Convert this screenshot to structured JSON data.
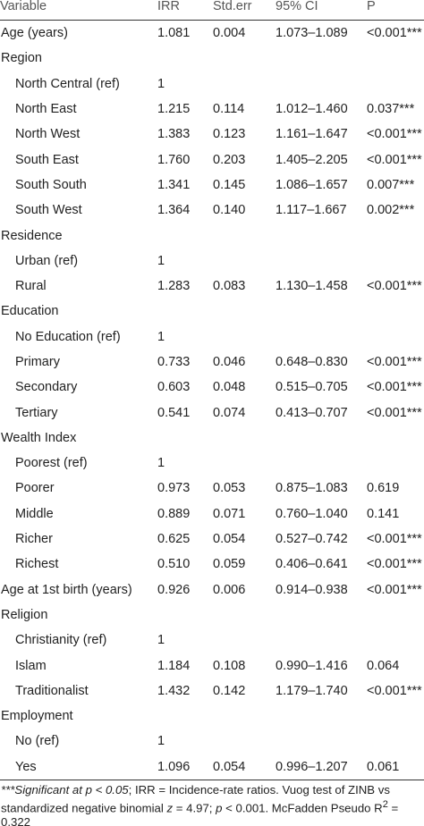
{
  "table": {
    "headers": [
      "Variable",
      "IRR",
      "Std.err",
      "95% CI",
      "P"
    ],
    "rows": [
      {
        "label": "Age (years)",
        "level": "main",
        "irr": "1.081",
        "se": "0.004",
        "ci": "1.073–1.089",
        "p": "<0.001***"
      },
      {
        "label": "Region",
        "level": "main",
        "irr": "",
        "se": "",
        "ci": "",
        "p": ""
      },
      {
        "label": "North Central (ref)",
        "level": "sub",
        "irr": "1",
        "se": "",
        "ci": "",
        "p": ""
      },
      {
        "label": "North East",
        "level": "sub",
        "irr": "1.215",
        "se": "0.114",
        "ci": "1.012–1.460",
        "p": "0.037***"
      },
      {
        "label": "North West",
        "level": "sub",
        "irr": "1.383",
        "se": "0.123",
        "ci": "1.161–1.647",
        "p": "<0.001***"
      },
      {
        "label": "South East",
        "level": "sub",
        "irr": "1.760",
        "se": "0.203",
        "ci": "1.405–2.205",
        "p": "<0.001***"
      },
      {
        "label": "South South",
        "level": "sub",
        "irr": "1.341",
        "se": "0.145",
        "ci": "1.086–1.657",
        "p": "0.007***"
      },
      {
        "label": "South West",
        "level": "sub",
        "irr": "1.364",
        "se": "0.140",
        "ci": "1.117–1.667",
        "p": "0.002***"
      },
      {
        "label": "Residence",
        "level": "main",
        "irr": "",
        "se": "",
        "ci": "",
        "p": ""
      },
      {
        "label": "Urban (ref)",
        "level": "sub",
        "irr": "1",
        "se": "",
        "ci": "",
        "p": ""
      },
      {
        "label": "Rural",
        "level": "sub",
        "irr": "1.283",
        "se": "0.083",
        "ci": "1.130–1.458",
        "p": "<0.001***"
      },
      {
        "label": "Education",
        "level": "main",
        "irr": "",
        "se": "",
        "ci": "",
        "p": ""
      },
      {
        "label": "No Education (ref)",
        "level": "sub",
        "irr": "1",
        "se": "",
        "ci": "",
        "p": ""
      },
      {
        "label": "Primary",
        "level": "sub",
        "irr": "0.733",
        "se": "0.046",
        "ci": "0.648–0.830",
        "p": "<0.001***"
      },
      {
        "label": "Secondary",
        "level": "sub",
        "irr": "0.603",
        "se": "0.048",
        "ci": "0.515–0.705",
        "p": "<0.001***"
      },
      {
        "label": "Tertiary",
        "level": "sub",
        "irr": "0.541",
        "se": "0.074",
        "ci": "0.413–0.707",
        "p": "<0.001***"
      },
      {
        "label": "Wealth Index",
        "level": "main",
        "irr": "",
        "se": "",
        "ci": "",
        "p": ""
      },
      {
        "label": "Poorest (ref)",
        "level": "sub",
        "irr": "1",
        "se": "",
        "ci": "",
        "p": ""
      },
      {
        "label": "Poorer",
        "level": "sub",
        "irr": "0.973",
        "se": "0.053",
        "ci": "0.875–1.083",
        "p": "0.619"
      },
      {
        "label": "Middle",
        "level": "sub",
        "irr": "0.889",
        "se": "0.071",
        "ci": "0.760–1.040",
        "p": "0.141"
      },
      {
        "label": "Richer",
        "level": "sub",
        "irr": "0.625",
        "se": "0.054",
        "ci": "0.527–0.742",
        "p": "<0.001***"
      },
      {
        "label": "Richest",
        "level": "sub",
        "irr": "0.510",
        "se": "0.059",
        "ci": "0.406–0.641",
        "p": "<0.001***"
      },
      {
        "label": "Age at 1st birth (years)",
        "level": "main",
        "irr": "0.926",
        "se": "0.006",
        "ci": "0.914–0.938",
        "p": "<0.001***"
      },
      {
        "label": "Religion",
        "level": "main",
        "irr": "",
        "se": "",
        "ci": "",
        "p": ""
      },
      {
        "label": "Christianity (ref)",
        "level": "sub",
        "irr": "1",
        "se": "",
        "ci": "",
        "p": ""
      },
      {
        "label": "Islam",
        "level": "sub",
        "irr": "1.184",
        "se": "0.108",
        "ci": "0.990–1.416",
        "p": "0.064"
      },
      {
        "label": "Traditionalist",
        "level": "sub",
        "irr": "1.432",
        "se": "0.142",
        "ci": "1.179–1.740",
        "p": "<0.001***"
      },
      {
        "label": "Employment",
        "level": "main",
        "irr": "",
        "se": "",
        "ci": "",
        "p": ""
      },
      {
        "label": "No (ref)",
        "level": "sub",
        "irr": "1",
        "se": "",
        "ci": "",
        "p": ""
      },
      {
        "label": "Yes",
        "level": "sub",
        "irr": "1.096",
        "se": "0.054",
        "ci": "0.996–1.207",
        "p": "0.061"
      }
    ]
  },
  "footnote": {
    "significance": "***Significant at ",
    "p_sym": "p",
    "threshold": " < 0.05",
    "text1": "; IRR = Incidence-rate ratios. Vuog test of ZINB vs standardized negative binomial ",
    "z_sym": "z",
    "text2": " = 4.97; ",
    "p_sym2": "p",
    "text3": " < 0.001. McFadden Pseudo R",
    "sup": "2",
    "text4": " = 0.322"
  },
  "colors": {
    "text": "#222222",
    "header_text": "#555555",
    "rule": "#333333",
    "background": "#ffffff"
  }
}
